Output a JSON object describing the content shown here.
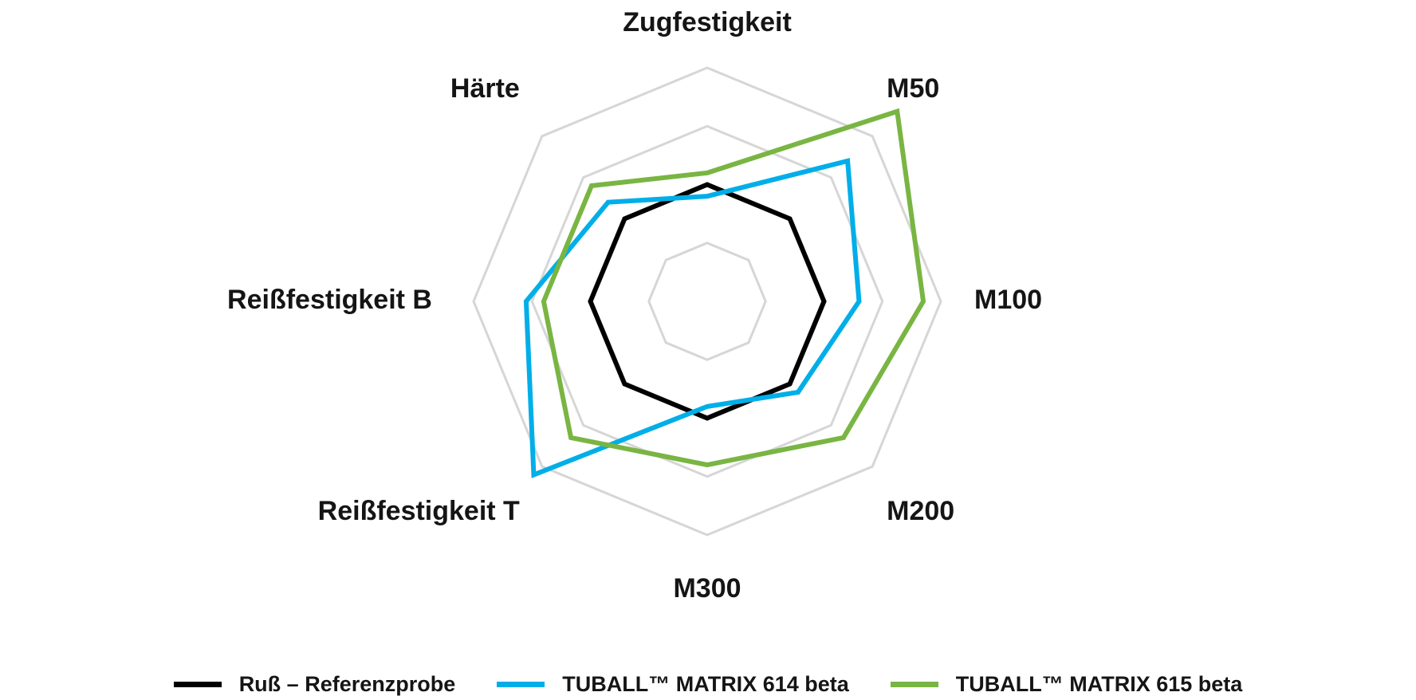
{
  "chart_data": {
    "type": "radar",
    "axes": [
      "Zugfestigkeit",
      "M50",
      "M100",
      "M200",
      "M300",
      "Reißfestigkeit T",
      "Reißfestigkeit B",
      "Härte"
    ],
    "grid_levels": 4,
    "range": [
      0,
      4
    ],
    "grid": true,
    "legend_position": "bottom",
    "series": [
      {
        "name": "Ruß – Referenzprobe",
        "color": "#000000",
        "values": [
          2.0,
          2.0,
          2.0,
          2.0,
          2.0,
          2.0,
          2.0,
          2.0
        ]
      },
      {
        "name": "TUBALL™ MATRIX 614 beta",
        "color": "#00aee8",
        "values": [
          1.8,
          3.4,
          2.6,
          2.2,
          1.8,
          4.2,
          3.1,
          2.4
        ]
      },
      {
        "name": "TUBALL™ MATRIX 615 beta",
        "color": "#79b543",
        "values": [
          2.2,
          4.6,
          3.7,
          3.3,
          2.8,
          3.3,
          2.8,
          2.8
        ]
      }
    ]
  }
}
